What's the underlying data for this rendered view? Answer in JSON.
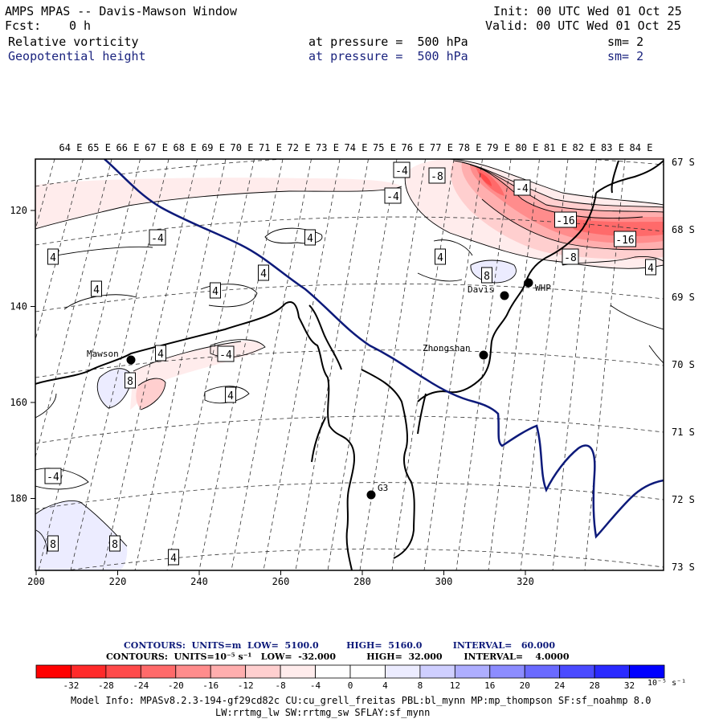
{
  "header": {
    "title": "AMPS MPAS -- Davis-Mawson Window",
    "init": "Init: 00 UTC Wed 01 Oct 25",
    "fcst_label": "Fcst:",
    "fcst_value": "0 h",
    "valid": "Valid: 00 UTC Wed 01 Oct 25",
    "field1": "Relative vorticity",
    "field1_pressure": "at pressure =  500 hPa",
    "field1_sm": "sm= 2",
    "field2": "Geopotential height",
    "field2_pressure": "at pressure =  500 hPa",
    "field2_sm": "sm= 2"
  },
  "lon_labels": [
    "64 E",
    "65 E",
    "66 E",
    "67 E",
    "68 E",
    "69 E",
    "70 E",
    "71 E",
    "72 E",
    "73 E",
    "74 E",
    "75 E",
    "76 E",
    "77 E",
    "78 E",
    "79 E",
    "80 E",
    "81 E",
    "82 E",
    "83 E",
    "84 E"
  ],
  "lat_labels": [
    "67 S",
    "68 S",
    "69 S",
    "70 S",
    "71 S",
    "72 S",
    "73 S"
  ],
  "x_ticks": [
    "200",
    "220",
    "240",
    "260",
    "280",
    "300",
    "320"
  ],
  "y_ticks": [
    "120",
    "140",
    "160",
    "180"
  ],
  "stations": [
    {
      "name": "Mawson"
    },
    {
      "name": "Davis"
    },
    {
      "name": "WHP"
    },
    {
      "name": "Zhongshan"
    },
    {
      "name": "G3"
    }
  ],
  "contour_labels": [
    "-4",
    "-8",
    "-4",
    "-16",
    "-16",
    "-8",
    "-4",
    "4",
    "-4",
    "4",
    "4",
    "4",
    "8",
    "4",
    "-4",
    "4",
    "8",
    "4",
    "4",
    "8",
    "8",
    "4",
    "-4",
    "4"
  ],
  "contours_info": {
    "line1": "CONTOURS:  UNITS=m  LOW=  5100.0         HIGH=  5160.0          INTERVAL=   60.000",
    "line2": "CONTOURS:  UNITS=10⁻⁵ s⁻¹   LOW=  -32.000          HIGH=  32.000       INTERVAL=    4.0000"
  },
  "colorbar": {
    "colors": [
      "#ff0000",
      "#ff2a2a",
      "#ff4a4a",
      "#ff6a6a",
      "#ff8c8c",
      "#ffaeae",
      "#ffcfcf",
      "#ffecec",
      "#ffffff",
      "#ffffff",
      "#ececff",
      "#cfcfff",
      "#aeaeff",
      "#8c8cff",
      "#6a6aff",
      "#4a4aff",
      "#2a2aff",
      "#0000ff"
    ],
    "labels": [
      "-32",
      "-28",
      "-24",
      "-20",
      "-16",
      "-12",
      "-8",
      "-4",
      "0",
      "4",
      "8",
      "12",
      "16",
      "20",
      "24",
      "28",
      "32"
    ],
    "unit": "10⁻⁵ s⁻¹"
  },
  "model_info": {
    "line1": "Model Info: MPASv8.2.3-194-gf29cd82c CU:cu_grell_freitas PBL:bl_mynn MP:mp_thompson SF:sf_noahmp 8.0",
    "line2": "LW:rrtmg_lw SW:rrtmg_sw SFLAY:sf_mynn"
  },
  "colors": {
    "coast": "#000000",
    "height_contour": "#0d1a7a",
    "negative_vort": "#ff0000",
    "positive_vort": "#0000ff"
  }
}
